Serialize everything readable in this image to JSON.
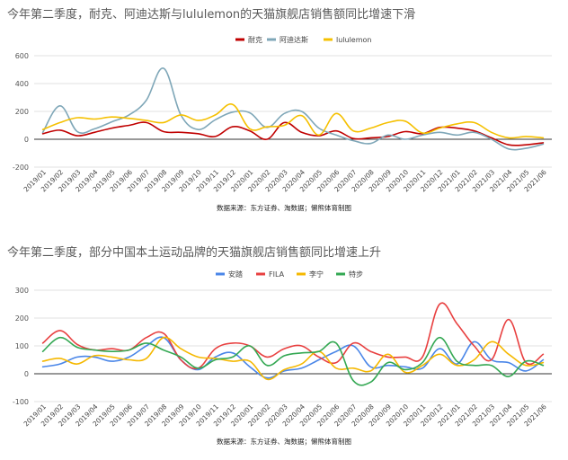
{
  "chart_data": [
    {
      "type": "line",
      "title": "今年第二季度，耐克、阿迪达斯与lululemon的天猫旗舰店销售额同比增速下滑",
      "source": "数据来源：东方证券、淘数据；懒熊体育制图",
      "ylim": [
        -200,
        600
      ],
      "yticks": [
        "-200",
        "0",
        "200",
        "400",
        "600"
      ],
      "yticks_values": [
        -200,
        0,
        200,
        400,
        600
      ],
      "legend_position": "top",
      "categories": [
        "2019/01",
        "2019/02",
        "2019/03",
        "2019/04",
        "2019/05",
        "2019/06",
        "2019/07",
        "2019/08",
        "2019/09",
        "2019/10",
        "2019/11",
        "2019/12",
        "2020/01",
        "2020/02",
        "2020/03",
        "2020/04",
        "2020/05",
        "2020/06",
        "2020/07",
        "2020/08",
        "2020/09",
        "2020/10",
        "2020/11",
        "2020/12",
        "2021/01",
        "2021/02",
        "2021/03",
        "2021/04",
        "2021/05",
        "2021/06"
      ],
      "series": [
        {
          "name": "耐克",
          "color": "#c00000",
          "values": [
            40,
            65,
            25,
            50,
            80,
            100,
            120,
            55,
            50,
            40,
            20,
            90,
            60,
            0,
            120,
            50,
            25,
            60,
            5,
            10,
            20,
            55,
            40,
            85,
            80,
            60,
            10,
            -40,
            -40,
            -25
          ]
        },
        {
          "name": "阿迪达斯",
          "color": "#7fa7b8",
          "values": [
            50,
            240,
            55,
            75,
            125,
            175,
            280,
            510,
            175,
            70,
            140,
            195,
            190,
            85,
            185,
            200,
            80,
            30,
            -10,
            -30,
            30,
            0,
            30,
            50,
            30,
            50,
            0,
            -70,
            -65,
            -35
          ]
        },
        {
          "name": "lululemon",
          "color": "#f5c000",
          "values": [
            70,
            120,
            155,
            145,
            160,
            150,
            135,
            120,
            175,
            135,
            175,
            250,
            75,
            90,
            100,
            170,
            30,
            185,
            60,
            80,
            120,
            130,
            45,
            80,
            110,
            120,
            50,
            10,
            20,
            10
          ]
        }
      ]
    },
    {
      "type": "line",
      "title": "今年第二季度，部分中国本土运动品牌的天猫旗舰店销售额同比增速上升",
      "source": "数据来源：东方证券、淘数据；懒熊体育制图",
      "ylim": [
        -100,
        300
      ],
      "yticks": [
        "-100",
        "0",
        "100",
        "200",
        "300"
      ],
      "yticks_values": [
        -100,
        0,
        100,
        200,
        300
      ],
      "legend_position": "top",
      "categories": [
        "2019/01",
        "2019/02",
        "2019/03",
        "2019/04",
        "2019/05",
        "2019/06",
        "2019/07",
        "2019/08",
        "2019/09",
        "2019/10",
        "2019/11",
        "2019/12",
        "2020/01",
        "2020/02",
        "2020/03",
        "2020/04",
        "2020/05",
        "2020/06",
        "2020/07",
        "2020/08",
        "2020/09",
        "2020/10",
        "2020/11",
        "2020/12",
        "2021/01",
        "2021/02",
        "2021/03",
        "2021/04",
        "2021/05",
        "2021/06"
      ],
      "series": [
        {
          "name": "安踏",
          "color": "#4a86e8",
          "values": [
            25,
            35,
            60,
            60,
            45,
            60,
            100,
            130,
            50,
            15,
            60,
            75,
            25,
            -15,
            10,
            20,
            50,
            80,
            100,
            25,
            30,
            25,
            20,
            90,
            35,
            115,
            50,
            40,
            10,
            50
          ]
        },
        {
          "name": "FILA",
          "color": "#e84040",
          "values": [
            110,
            155,
            105,
            85,
            90,
            85,
            130,
            145,
            50,
            20,
            90,
            110,
            100,
            60,
            90,
            100,
            60,
            40,
            110,
            80,
            60,
            60,
            60,
            250,
            180,
            100,
            50,
            195,
            40,
            70
          ]
        },
        {
          "name": "李宁",
          "color": "#f5b800",
          "values": [
            45,
            55,
            35,
            65,
            60,
            50,
            55,
            130,
            90,
            60,
            55,
            45,
            45,
            -20,
            15,
            35,
            80,
            20,
            20,
            10,
            70,
            5,
            30,
            70,
            30,
            50,
            115,
            70,
            30,
            40
          ]
        },
        {
          "name": "特步",
          "color": "#34a853",
          "values": [
            80,
            130,
            95,
            85,
            80,
            85,
            110,
            85,
            60,
            20,
            50,
            60,
            100,
            30,
            65,
            75,
            80,
            110,
            -25,
            -30,
            40,
            15,
            40,
            130,
            45,
            30,
            30,
            -10,
            45,
            30
          ]
        }
      ]
    }
  ]
}
